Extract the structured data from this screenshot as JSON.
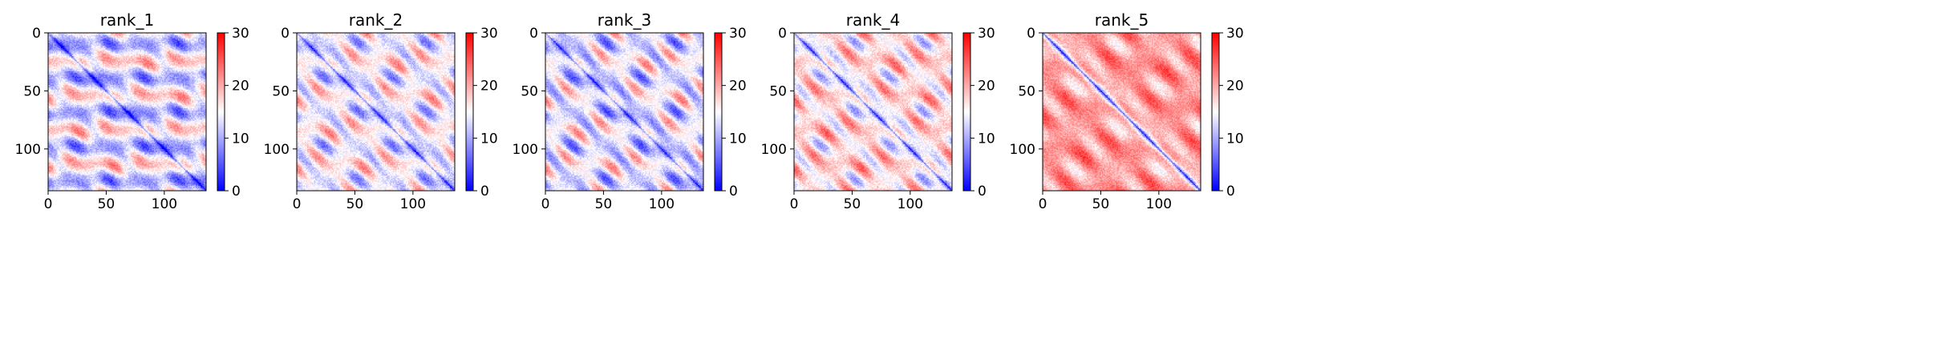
{
  "chart_data": [
    {
      "type": "heatmap",
      "title": "rank_1",
      "matrix_size": 136,
      "x_ticks": [
        0,
        50,
        100
      ],
      "y_ticks": [
        0,
        50,
        100
      ],
      "colorbar": {
        "min": 0,
        "max": 30,
        "ticks": [
          0,
          10,
          20,
          30
        ],
        "colormap": "bwr"
      },
      "pattern": {
        "base": 14,
        "diag_depth": 13,
        "amp": 5.5,
        "stripe_amp": 5,
        "period": 29.5
      }
    },
    {
      "type": "heatmap",
      "title": "rank_2",
      "matrix_size": 136,
      "x_ticks": [
        0,
        50,
        100
      ],
      "y_ticks": [
        0,
        50,
        100
      ],
      "colorbar": {
        "min": 0,
        "max": 30,
        "ticks": [
          0,
          10,
          20,
          30
        ],
        "colormap": "bwr"
      },
      "pattern": {
        "base": 15,
        "diag_depth": 14,
        "amp": 7,
        "stripe_amp": 2,
        "period": 29.5
      }
    },
    {
      "type": "heatmap",
      "title": "rank_3",
      "matrix_size": 136,
      "x_ticks": [
        0,
        50,
        100
      ],
      "y_ticks": [
        0,
        50,
        100
      ],
      "colorbar": {
        "min": 0,
        "max": 30,
        "ticks": [
          0,
          10,
          20,
          30
        ],
        "colormap": "bwr"
      },
      "pattern": {
        "base": 14,
        "diag_depth": 13,
        "amp": 8,
        "stripe_amp": 2,
        "period": 29.5
      }
    },
    {
      "type": "heatmap",
      "title": "rank_4",
      "matrix_size": 136,
      "x_ticks": [
        0,
        50,
        100
      ],
      "y_ticks": [
        0,
        50,
        100
      ],
      "colorbar": {
        "min": 0,
        "max": 30,
        "ticks": [
          0,
          10,
          20,
          30
        ],
        "colormap": "bwr"
      },
      "pattern": {
        "base": 17,
        "diag_depth": 16,
        "amp": 7,
        "stripe_amp": 1.5,
        "period": 29.5
      }
    },
    {
      "type": "heatmap",
      "title": "rank_5",
      "matrix_size": 136,
      "x_ticks": [
        0,
        50,
        100
      ],
      "y_ticks": [
        0,
        50,
        100
      ],
      "colorbar": {
        "min": 0,
        "max": 30,
        "ticks": [
          0,
          10,
          20,
          30
        ],
        "colormap": "bwr"
      },
      "pattern": {
        "base": 21,
        "diag_depth": 20,
        "amp": 5,
        "stripe_amp": 1,
        "period": 36
      }
    }
  ]
}
